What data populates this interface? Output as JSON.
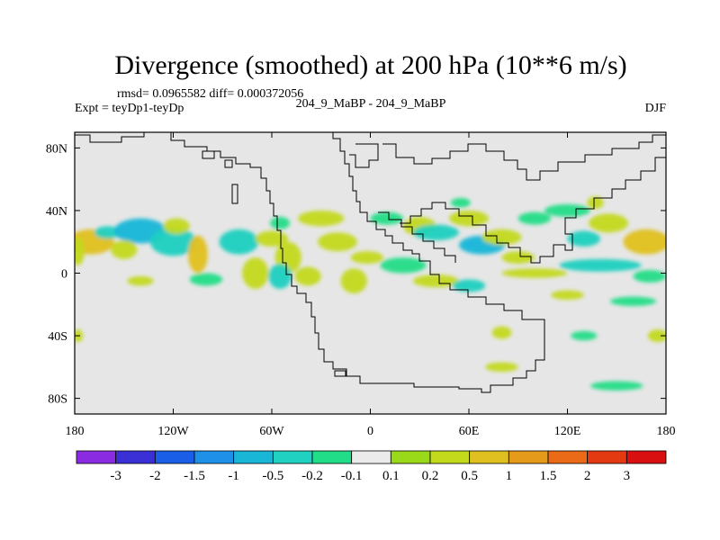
{
  "chart_data": {
    "type": "heatmap",
    "title": "Divergence (smoothed) at 200 hPa (10**6 m/s)",
    "stats_text": "rmsd= 0.0965582 diff= 0.000372056",
    "left_label": "Expt = teyDp1-teyDp",
    "center_label": "204_9_MaBP - 204_9_MaBP",
    "right_label": "DJF",
    "x_axis": {
      "range": [
        -180,
        180
      ],
      "ticks": [
        -180,
        -120,
        -60,
        0,
        60,
        120,
        180
      ],
      "tick_labels": [
        "180",
        "120W",
        "60W",
        "0",
        "60E",
        "120E",
        "180"
      ]
    },
    "y_axis": {
      "range": [
        -90,
        90
      ],
      "ticks": [
        80,
        40,
        0,
        -40,
        -80
      ],
      "tick_labels": [
        "80N",
        "40N",
        "0",
        "40S",
        "80S"
      ]
    },
    "colorbar": {
      "colors": [
        "#8a2be2",
        "#3b2fd6",
        "#1a5ee8",
        "#1e90e8",
        "#19b6d8",
        "#20d0c0",
        "#22dd88",
        "#ebebeb",
        "#9ad81a",
        "#c3d91c",
        "#e0c020",
        "#e69a1a",
        "#ea6a18",
        "#e43a12",
        "#d81010"
      ],
      "boundaries": [
        "-3",
        "-2",
        "-1.5",
        "-1",
        "-0.5",
        "-0.2",
        "-0.1",
        "0.1",
        "0.2",
        "0.5",
        "1",
        "1.5",
        "2",
        "3"
      ]
    },
    "anomalies": [
      {
        "lon": -170,
        "lat": 20,
        "rlon": 14,
        "rlat": 8,
        "value": 0.5
      },
      {
        "lon": -160,
        "lat": 26,
        "rlon": 8,
        "rlat": 4,
        "value": -0.25
      },
      {
        "lon": -178,
        "lat": 14,
        "rlon": 4,
        "rlat": 9,
        "value": 0.4
      },
      {
        "lon": -140,
        "lat": 27,
        "rlon": 16,
        "rlat": 8,
        "value": -0.6
      },
      {
        "lon": -150,
        "lat": 15,
        "rlon": 8,
        "rlat": 6,
        "value": 0.25
      },
      {
        "lon": -120,
        "lat": 20,
        "rlon": 14,
        "rlat": 9,
        "value": -0.35
      },
      {
        "lon": -118,
        "lat": 30,
        "rlon": 8,
        "rlat": 5,
        "value": 0.2
      },
      {
        "lon": -105,
        "lat": 12,
        "rlon": 6,
        "rlat": 12,
        "value": 0.7
      },
      {
        "lon": -80,
        "lat": 20,
        "rlon": 12,
        "rlat": 8,
        "value": -0.3
      },
      {
        "lon": -60,
        "lat": 22,
        "rlon": 10,
        "rlat": 5,
        "value": 0.25
      },
      {
        "lon": -55,
        "lat": 32,
        "rlon": 6,
        "rlat": 4,
        "value": -0.2
      },
      {
        "lon": -50,
        "lat": 10,
        "rlon": 8,
        "rlat": 10,
        "value": 0.4
      },
      {
        "lon": -70,
        "lat": 0,
        "rlon": 8,
        "rlat": 10,
        "value": 0.3
      },
      {
        "lon": -55,
        "lat": -2,
        "rlon": 7,
        "rlat": 8,
        "value": -0.4
      },
      {
        "lon": -30,
        "lat": 35,
        "rlon": 14,
        "rlat": 5,
        "value": 0.2
      },
      {
        "lon": -20,
        "lat": 20,
        "rlon": 12,
        "rlat": 6,
        "value": 0.25
      },
      {
        "lon": -38,
        "lat": -2,
        "rlon": 8,
        "rlat": 6,
        "value": 0.3
      },
      {
        "lon": -2,
        "lat": 10,
        "rlon": 10,
        "rlat": 4,
        "value": 0.2
      },
      {
        "lon": -10,
        "lat": -5,
        "rlon": 8,
        "rlat": 8,
        "value": 0.25
      },
      {
        "lon": 20,
        "lat": 5,
        "rlon": 14,
        "rlat": 5,
        "value": -0.2
      },
      {
        "lon": 10,
        "lat": 35,
        "rlon": 10,
        "rlat": 4,
        "value": -0.2
      },
      {
        "lon": 30,
        "lat": 30,
        "rlon": 10,
        "rlat": 6,
        "value": 0.4
      },
      {
        "lon": 40,
        "lat": 26,
        "rlon": 14,
        "rlat": 5,
        "value": -0.3
      },
      {
        "lon": 60,
        "lat": 35,
        "rlon": 12,
        "rlat": 5,
        "value": 0.2
      },
      {
        "lon": 68,
        "lat": 18,
        "rlon": 14,
        "rlat": 6,
        "value": -0.6
      },
      {
        "lon": 80,
        "lat": 23,
        "rlon": 12,
        "rlat": 5,
        "value": 0.3
      },
      {
        "lon": 100,
        "lat": 35,
        "rlon": 10,
        "rlat": 4,
        "value": -0.2
      },
      {
        "lon": 90,
        "lat": 10,
        "rlon": 10,
        "rlat": 4,
        "value": 0.3
      },
      {
        "lon": 120,
        "lat": 40,
        "rlon": 14,
        "rlat": 4,
        "value": -0.2
      },
      {
        "lon": 145,
        "lat": 32,
        "rlon": 12,
        "rlat": 6,
        "value": 0.3
      },
      {
        "lon": 130,
        "lat": 22,
        "rlon": 10,
        "rlat": 5,
        "value": -0.25
      },
      {
        "lon": 168,
        "lat": 20,
        "rlon": 14,
        "rlat": 8,
        "value": 0.6
      },
      {
        "lon": 140,
        "lat": 5,
        "rlon": 25,
        "rlat": 4,
        "value": -0.4
      },
      {
        "lon": 100,
        "lat": 0,
        "rlon": 20,
        "rlat": 3,
        "value": 0.3
      },
      {
        "lon": 170,
        "lat": -2,
        "rlon": 10,
        "rlat": 4,
        "value": -0.2
      },
      {
        "lon": 40,
        "lat": -5,
        "rlon": 14,
        "rlat": 4,
        "value": 0.3
      },
      {
        "lon": 60,
        "lat": -8,
        "rlon": 10,
        "rlat": 4,
        "value": -0.3
      },
      {
        "lon": 120,
        "lat": -14,
        "rlon": 10,
        "rlat": 3,
        "value": 0.2
      },
      {
        "lon": 160,
        "lat": -18,
        "rlon": 14,
        "rlat": 3,
        "value": -0.2
      },
      {
        "lon": -140,
        "lat": -5,
        "rlon": 8,
        "rlat": 3,
        "value": 0.2
      },
      {
        "lon": -100,
        "lat": -4,
        "rlon": 10,
        "rlat": 4,
        "value": -0.2
      },
      {
        "lon": -178,
        "lat": -40,
        "rlon": 3,
        "rlat": 4,
        "value": 0.3
      },
      {
        "lon": 80,
        "lat": -38,
        "rlon": 6,
        "rlat": 4,
        "value": 0.2
      },
      {
        "lon": 130,
        "lat": -40,
        "rlon": 8,
        "rlat": 3,
        "value": -0.2
      },
      {
        "lon": 175,
        "lat": -40,
        "rlon": 6,
        "rlat": 4,
        "value": 0.3
      },
      {
        "lon": 80,
        "lat": -60,
        "rlon": 10,
        "rlat": 3,
        "value": 0.2
      },
      {
        "lon": 150,
        "lat": -72,
        "rlon": 16,
        "rlat": 3,
        "value": -0.2
      },
      {
        "lon": 55,
        "lat": 45,
        "rlon": 6,
        "rlat": 3,
        "value": -0.2
      },
      {
        "lon": 137,
        "lat": 45,
        "rlon": 5,
        "rlat": 4,
        "value": 0.2
      }
    ]
  }
}
